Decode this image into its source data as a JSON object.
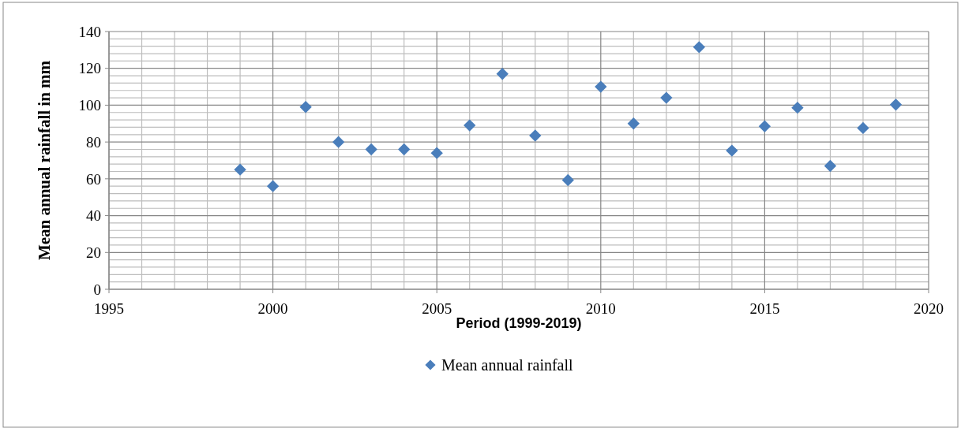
{
  "chart_data": {
    "type": "scatter",
    "xlabel": "Period (1999-2019)",
    "ylabel": "Mean annual rainfall in mm",
    "x": [
      1999,
      2000,
      2001,
      2002,
      2003,
      2004,
      2005,
      2006,
      2007,
      2008,
      2009,
      2010,
      2011,
      2012,
      2013,
      2014,
      2015,
      2016,
      2017,
      2018,
      2019
    ],
    "series": [
      {
        "name": "Mean annual rainfall",
        "color": "#4a7ebb",
        "values": [
          65,
          56,
          99,
          80,
          76,
          76,
          74,
          89,
          117,
          83.5,
          59.3,
          110,
          90,
          104,
          131.5,
          75.3,
          88.5,
          98.6,
          67,
          87.6,
          100.3
        ]
      }
    ],
    "xlim": [
      1995,
      2020
    ],
    "xticks": [
      1995,
      2000,
      2005,
      2010,
      2015,
      2020
    ],
    "ylim": [
      0,
      140
    ],
    "yticks": [
      0,
      20,
      40,
      60,
      80,
      100,
      120,
      140
    ],
    "grid": true,
    "legend": "bottom",
    "marker": "diamond"
  }
}
